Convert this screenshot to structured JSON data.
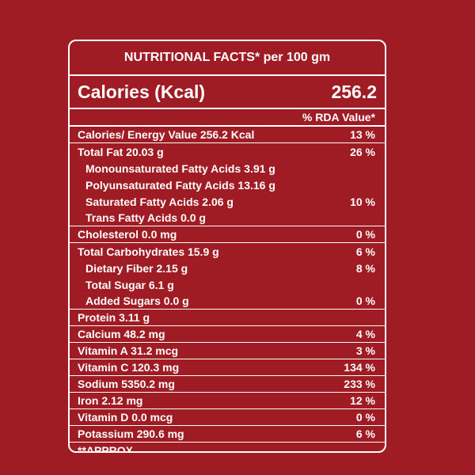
{
  "header": {
    "title": "NUTRITIONAL FACTS* per 100 gm"
  },
  "calories": {
    "label": "Calories (Kcal)",
    "value": "256.2"
  },
  "rda_header": "% RDA Value*",
  "rows": [
    {
      "label": "Calories/ Energy Value 256.2 Kcal",
      "value": "13 %"
    },
    {
      "label": "Total Fat 20.03 g",
      "value": "26 %"
    },
    {
      "label": "Monounsaturated Fatty Acids 3.91 g",
      "value": ""
    },
    {
      "label": "Polyunsaturated Fatty Acids 13.16 g",
      "value": ""
    },
    {
      "label": "Saturated Fatty Acids 2.06 g",
      "value": "10 %"
    },
    {
      "label": "Trans Fatty Acids 0.0 g",
      "value": ""
    },
    {
      "label": "Cholesterol 0.0 mg",
      "value": "0 %"
    },
    {
      "label": "Total Carbohydrates 15.9 g",
      "value": "6 %"
    },
    {
      "label": "Dietary Fiber 2.15 g",
      "value": "8 %"
    },
    {
      "label": "Total Sugar 6.1 g",
      "value": ""
    },
    {
      "label": "Added Sugars 0.0 g",
      "value": "0 %"
    },
    {
      "label": "Protein 3.11 g",
      "value": ""
    },
    {
      "label": "Calcium 48.2 mg",
      "value": "4 %"
    },
    {
      "label": "Vitamin A 31.2 mcg",
      "value": "3 %"
    },
    {
      "label": "Vitamin C 120.3 mg",
      "value": "134 %"
    },
    {
      "label": "Sodium 5350.2 mg",
      "value": "233 %"
    },
    {
      "label": "Iron 2.12 mg",
      "value": "12 %"
    },
    {
      "label": "Vitamin D 0.0 mcg",
      "value": "0 %"
    },
    {
      "label": "Potassium 290.6 mg",
      "value": "6 %"
    }
  ],
  "footnote": "**APPROX"
}
